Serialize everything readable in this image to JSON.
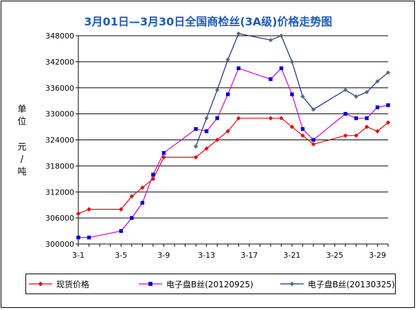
{
  "chart_data": {
    "type": "line",
    "title": "3月01日—3月30日全国商检丝(3A级)价格走势图",
    "ylabel": [
      "单",
      "位",
      "元",
      "/",
      "吨"
    ],
    "xlabel": "",
    "xlim": [
      1,
      30
    ],
    "ylim": [
      300000,
      348000
    ],
    "yticks": [
      300000,
      306000,
      312000,
      318000,
      324000,
      330000,
      336000,
      342000,
      348000
    ],
    "xticks": [
      "3-1",
      "3-5",
      "3-9",
      "3-13",
      "3-17",
      "3-21",
      "3-25",
      "3-29"
    ],
    "grid": true,
    "legend_position": "bottom",
    "series": [
      {
        "name": "现货价格",
        "color": "#e8000b",
        "marker": "diamond",
        "x": [
          1,
          2,
          5,
          6,
          7,
          8,
          9,
          12,
          13,
          14,
          15,
          16,
          19,
          20,
          21,
          22,
          23,
          26,
          27,
          28,
          29,
          30
        ],
        "y": [
          307000,
          308000,
          308000,
          311000,
          313000,
          315000,
          320000,
          320000,
          322000,
          324000,
          326000,
          329000,
          329000,
          329000,
          327000,
          325000,
          323000,
          325000,
          325000,
          327000,
          326000,
          328000
        ]
      },
      {
        "name": "电子盘B丝(20120925)",
        "color": "#cc00cc",
        "marker_color": "#0000cc",
        "marker": "square",
        "x": [
          1,
          2,
          5,
          6,
          7,
          8,
          9,
          12,
          13,
          14,
          15,
          16,
          19,
          20,
          21,
          22,
          23,
          26,
          27,
          28,
          29,
          30
        ],
        "y": [
          301500,
          301500,
          303000,
          306000,
          309500,
          316000,
          321000,
          326500,
          326000,
          329000,
          334500,
          340500,
          338000,
          340500,
          334500,
          326500,
          324000,
          330000,
          329000,
          329000,
          331500,
          332000
        ]
      },
      {
        "name": "电子盘B丝(20130325)",
        "color": "#1a237e",
        "marker_color": "#546e7a",
        "marker": "diamond",
        "x": [
          12,
          13,
          14,
          15,
          16,
          19,
          20,
          21,
          22,
          23,
          26,
          27,
          28,
          29,
          30
        ],
        "y": [
          322500,
          329000,
          335500,
          342500,
          348500,
          347000,
          348000,
          342000,
          334000,
          331000,
          335500,
          334000,
          335000,
          337500,
          339500
        ]
      }
    ]
  }
}
